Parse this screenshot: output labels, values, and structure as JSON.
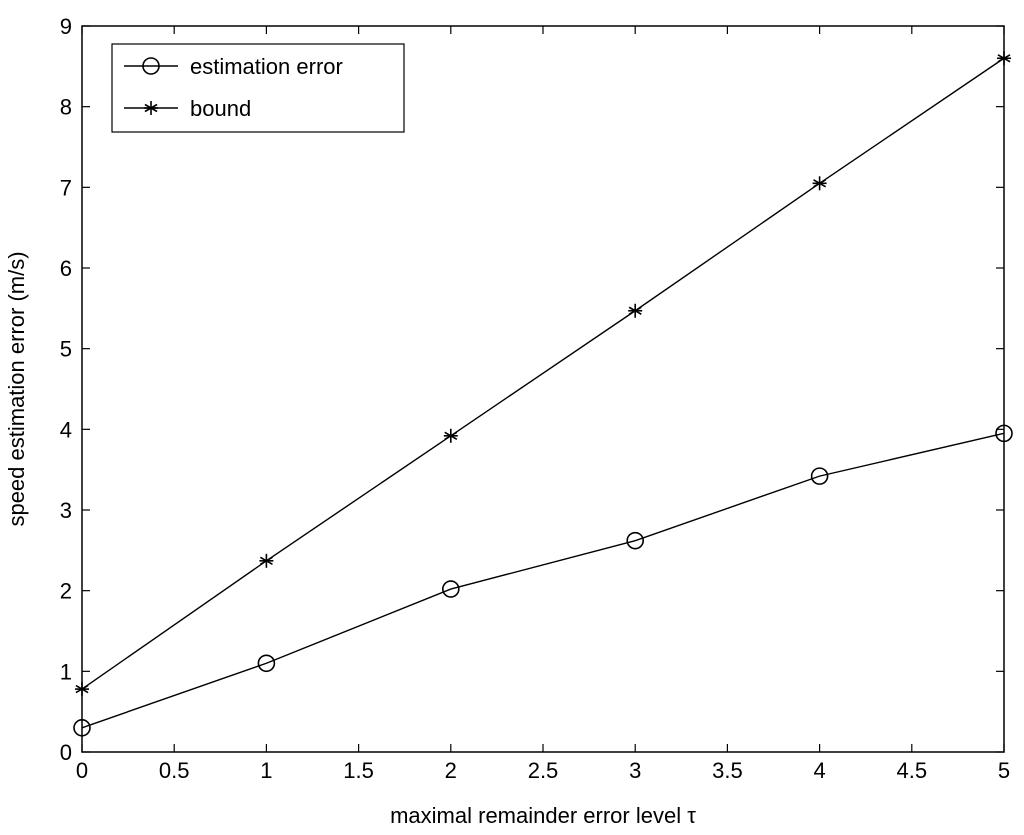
{
  "chart_data": {
    "type": "line",
    "title": "",
    "xlabel": "maximal remainder error level τ",
    "ylabel": "speed estimation error (m/s)",
    "xlim": [
      0,
      5
    ],
    "ylim": [
      0,
      9
    ],
    "xticks": [
      0,
      0.5,
      1,
      1.5,
      2,
      2.5,
      3,
      3.5,
      4,
      4.5,
      5
    ],
    "xtick_labels": [
      "0",
      "0.5",
      "1",
      "1.5",
      "2",
      "2.5",
      "3",
      "3.5",
      "4",
      "4.5",
      "5"
    ],
    "yticks": [
      0,
      1,
      2,
      3,
      4,
      5,
      6,
      7,
      8,
      9
    ],
    "ytick_labels": [
      "0",
      "1",
      "2",
      "3",
      "4",
      "5",
      "6",
      "7",
      "8",
      "9"
    ],
    "grid": false,
    "legend_position": "top-left",
    "series": [
      {
        "name": "estimation error",
        "marker": "circle",
        "color": "#000000",
        "x": [
          0,
          1,
          2,
          3,
          4,
          5
        ],
        "y": [
          0.3,
          1.1,
          2.02,
          2.62,
          3.42,
          3.95
        ]
      },
      {
        "name": "bound",
        "marker": "star",
        "color": "#000000",
        "x": [
          0,
          1,
          2,
          3,
          4,
          5
        ],
        "y": [
          0.78,
          2.37,
          3.92,
          5.47,
          7.05,
          8.6
        ]
      }
    ]
  }
}
